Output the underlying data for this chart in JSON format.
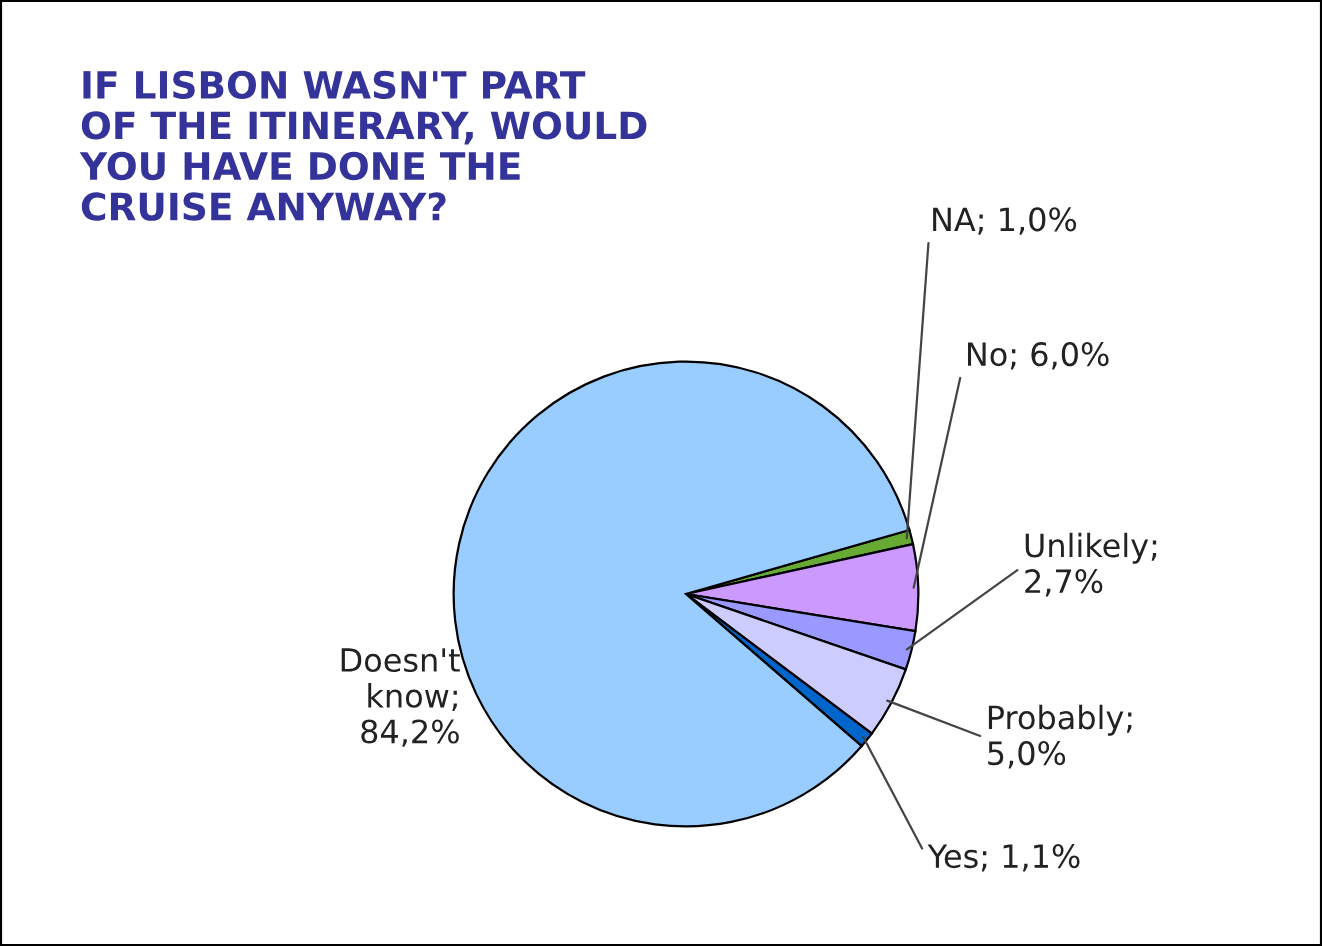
{
  "chart_data": {
    "type": "pie",
    "title": "IF LISBON WASN'T PART\nOF THE ITINERARY, WOULD\nYOU HAVE DONE THE\nCRUISE ANYWAY?",
    "categories": [
      "NA",
      "No",
      "Unlikely",
      "Probably",
      "Yes",
      "Doesn't know"
    ],
    "values": [
      1.0,
      6.0,
      2.7,
      5.0,
      1.1,
      84.2
    ],
    "value_labels": [
      "; 1,0%",
      "; 6,0%",
      ";\n2,7%",
      ";\n5,0%",
      "; 1,1%",
      ";\n84,2%"
    ],
    "colors": [
      "#66aa33",
      "#cc99ff",
      "#9999ff",
      "#ccccff",
      "#0066cc",
      "#99ccff"
    ],
    "legend": false
  }
}
